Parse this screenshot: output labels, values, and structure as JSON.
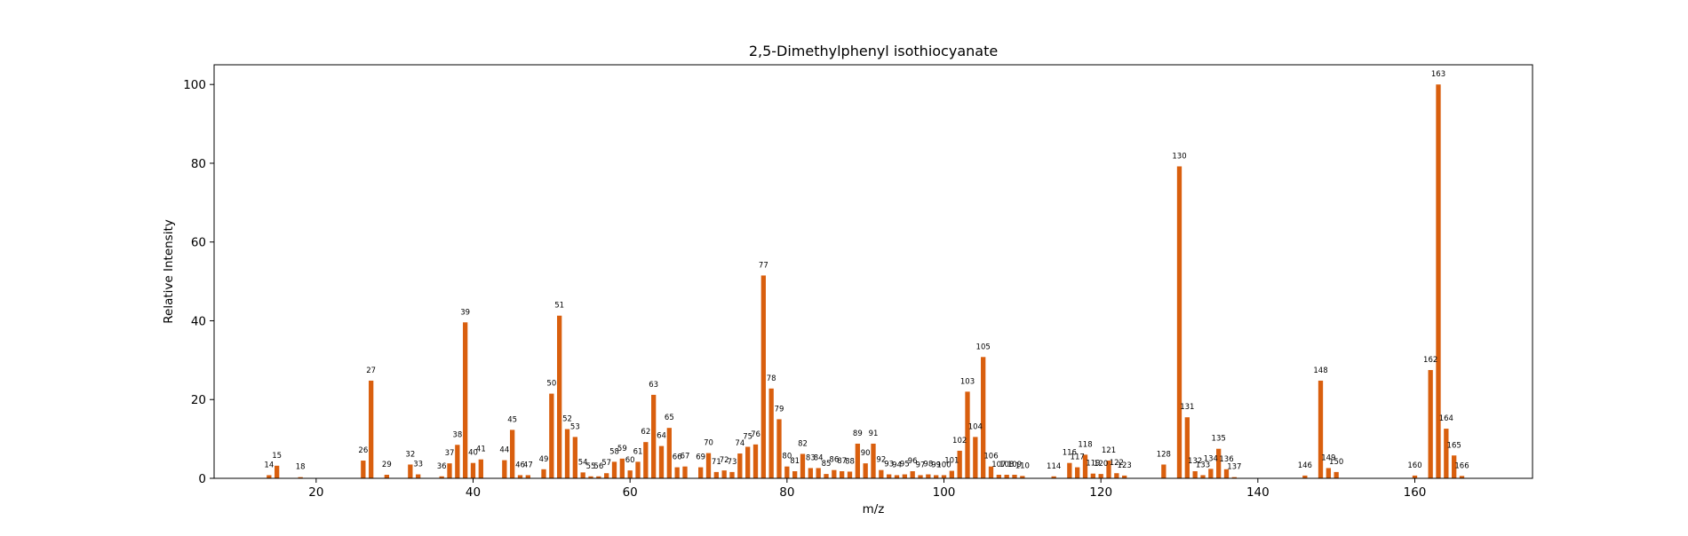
{
  "chart_data": {
    "type": "bar",
    "title": "2,5-Dimethylphenyl isothiocyanate",
    "xlabel": "m/z",
    "ylabel": "Relative Intensity",
    "xlim": [
      7,
      175
    ],
    "ylim": [
      0,
      105
    ],
    "xticks": [
      20,
      40,
      60,
      80,
      100,
      120,
      140,
      160
    ],
    "yticks": [
      0,
      20,
      40,
      60,
      80,
      100
    ],
    "grid": false,
    "bar_color": "#d95f0e",
    "peaks": [
      {
        "mz": 14,
        "intensity": 0.8,
        "label": "14"
      },
      {
        "mz": 15,
        "intensity": 3.2,
        "label": "15"
      },
      {
        "mz": 18,
        "intensity": 0.3,
        "label": "18"
      },
      {
        "mz": 26,
        "intensity": 4.5,
        "label": "26"
      },
      {
        "mz": 27,
        "intensity": 24.8,
        "label": "27"
      },
      {
        "mz": 29,
        "intensity": 0.9,
        "label": "29"
      },
      {
        "mz": 32,
        "intensity": 3.5,
        "label": "32"
      },
      {
        "mz": 33,
        "intensity": 1.0,
        "label": "33"
      },
      {
        "mz": 36,
        "intensity": 0.5,
        "label": "36"
      },
      {
        "mz": 37,
        "intensity": 3.8,
        "label": "37"
      },
      {
        "mz": 38,
        "intensity": 8.5,
        "label": "38"
      },
      {
        "mz": 39,
        "intensity": 39.6,
        "label": "39"
      },
      {
        "mz": 40,
        "intensity": 3.9,
        "label": "40"
      },
      {
        "mz": 41,
        "intensity": 4.8,
        "label": "41"
      },
      {
        "mz": 44,
        "intensity": 4.6,
        "label": "44"
      },
      {
        "mz": 45,
        "intensity": 12.3,
        "label": "45"
      },
      {
        "mz": 46,
        "intensity": 0.8,
        "label": "46"
      },
      {
        "mz": 47,
        "intensity": 0.8,
        "label": "47"
      },
      {
        "mz": 49,
        "intensity": 2.3,
        "label": "49"
      },
      {
        "mz": 50,
        "intensity": 21.5,
        "label": "50"
      },
      {
        "mz": 51,
        "intensity": 41.3,
        "label": "51"
      },
      {
        "mz": 52,
        "intensity": 12.5,
        "label": "52"
      },
      {
        "mz": 53,
        "intensity": 10.5,
        "label": "53"
      },
      {
        "mz": 54,
        "intensity": 1.5,
        "label": "54"
      },
      {
        "mz": 55,
        "intensity": 0.5,
        "label": "55"
      },
      {
        "mz": 56,
        "intensity": 0.5,
        "label": "56"
      },
      {
        "mz": 57,
        "intensity": 1.3,
        "label": "57"
      },
      {
        "mz": 58,
        "intensity": 4.2,
        "label": "58"
      },
      {
        "mz": 59,
        "intensity": 5.0,
        "label": "59"
      },
      {
        "mz": 60,
        "intensity": 2.0,
        "label": "60"
      },
      {
        "mz": 61,
        "intensity": 4.2,
        "label": "61"
      },
      {
        "mz": 62,
        "intensity": 9.2,
        "label": "62"
      },
      {
        "mz": 63,
        "intensity": 21.2,
        "label": "63"
      },
      {
        "mz": 64,
        "intensity": 8.2,
        "label": "64"
      },
      {
        "mz": 65,
        "intensity": 12.8,
        "label": "65"
      },
      {
        "mz": 66,
        "intensity": 2.8,
        "label": "66"
      },
      {
        "mz": 67,
        "intensity": 3.0,
        "label": "67"
      },
      {
        "mz": 69,
        "intensity": 2.8,
        "label": "69"
      },
      {
        "mz": 70,
        "intensity": 6.4,
        "label": "70"
      },
      {
        "mz": 71,
        "intensity": 1.6,
        "label": "71"
      },
      {
        "mz": 72,
        "intensity": 2.0,
        "label": "72"
      },
      {
        "mz": 73,
        "intensity": 1.6,
        "label": "73"
      },
      {
        "mz": 74,
        "intensity": 6.3,
        "label": "74"
      },
      {
        "mz": 75,
        "intensity": 8.0,
        "label": "75"
      },
      {
        "mz": 76,
        "intensity": 8.6,
        "label": "76"
      },
      {
        "mz": 77,
        "intensity": 51.5,
        "label": "77"
      },
      {
        "mz": 78,
        "intensity": 22.8,
        "label": "78"
      },
      {
        "mz": 79,
        "intensity": 15.0,
        "label": "79"
      },
      {
        "mz": 80,
        "intensity": 3.0,
        "label": "80"
      },
      {
        "mz": 81,
        "intensity": 1.8,
        "label": "81"
      },
      {
        "mz": 82,
        "intensity": 6.2,
        "label": "82"
      },
      {
        "mz": 83,
        "intensity": 2.6,
        "label": "83"
      },
      {
        "mz": 84,
        "intensity": 2.6,
        "label": "84"
      },
      {
        "mz": 85,
        "intensity": 1.1,
        "label": "85"
      },
      {
        "mz": 86,
        "intensity": 2.1,
        "label": "86"
      },
      {
        "mz": 87,
        "intensity": 1.8,
        "label": "87"
      },
      {
        "mz": 88,
        "intensity": 1.7,
        "label": "88"
      },
      {
        "mz": 89,
        "intensity": 8.8,
        "label": "89"
      },
      {
        "mz": 90,
        "intensity": 3.8,
        "label": "90"
      },
      {
        "mz": 91,
        "intensity": 8.8,
        "label": "91"
      },
      {
        "mz": 92,
        "intensity": 2.1,
        "label": "92"
      },
      {
        "mz": 93,
        "intensity": 1.0,
        "label": "93"
      },
      {
        "mz": 94,
        "intensity": 0.8,
        "label": "94"
      },
      {
        "mz": 95,
        "intensity": 1.0,
        "label": "95"
      },
      {
        "mz": 96,
        "intensity": 1.8,
        "label": "96"
      },
      {
        "mz": 97,
        "intensity": 0.8,
        "label": "97"
      },
      {
        "mz": 98,
        "intensity": 1.0,
        "label": "98"
      },
      {
        "mz": 99,
        "intensity": 0.8,
        "label": "99"
      },
      {
        "mz": 100,
        "intensity": 0.8,
        "label": "100"
      },
      {
        "mz": 101,
        "intensity": 1.9,
        "label": "101"
      },
      {
        "mz": 102,
        "intensity": 7.0,
        "label": "102"
      },
      {
        "mz": 103,
        "intensity": 22.0,
        "label": "103"
      },
      {
        "mz": 104,
        "intensity": 10.5,
        "label": "104"
      },
      {
        "mz": 105,
        "intensity": 30.8,
        "label": "105"
      },
      {
        "mz": 106,
        "intensity": 3.0,
        "label": "106"
      },
      {
        "mz": 107,
        "intensity": 0.9,
        "label": "107"
      },
      {
        "mz": 108,
        "intensity": 0.9,
        "label": "108"
      },
      {
        "mz": 109,
        "intensity": 0.9,
        "label": "109"
      },
      {
        "mz": 110,
        "intensity": 0.6,
        "label": "110"
      },
      {
        "mz": 114,
        "intensity": 0.5,
        "label": "114"
      },
      {
        "mz": 116,
        "intensity": 3.9,
        "label": "116"
      },
      {
        "mz": 117,
        "intensity": 2.8,
        "label": "117"
      },
      {
        "mz": 118,
        "intensity": 6.0,
        "label": "118"
      },
      {
        "mz": 119,
        "intensity": 1.2,
        "label": "119"
      },
      {
        "mz": 120,
        "intensity": 1.1,
        "label": "120"
      },
      {
        "mz": 121,
        "intensity": 4.5,
        "label": "121"
      },
      {
        "mz": 122,
        "intensity": 1.3,
        "label": "122"
      },
      {
        "mz": 123,
        "intensity": 0.7,
        "label": "123"
      },
      {
        "mz": 128,
        "intensity": 3.5,
        "label": "128"
      },
      {
        "mz": 130,
        "intensity": 79.2,
        "label": "130"
      },
      {
        "mz": 131,
        "intensity": 15.5,
        "label": "131"
      },
      {
        "mz": 132,
        "intensity": 1.8,
        "label": "132"
      },
      {
        "mz": 133,
        "intensity": 0.8,
        "label": "133"
      },
      {
        "mz": 134,
        "intensity": 2.4,
        "label": "134"
      },
      {
        "mz": 135,
        "intensity": 7.5,
        "label": "135"
      },
      {
        "mz": 136,
        "intensity": 2.3,
        "label": "136"
      },
      {
        "mz": 137,
        "intensity": 0.3,
        "label": "137"
      },
      {
        "mz": 146,
        "intensity": 0.7,
        "label": "146"
      },
      {
        "mz": 148,
        "intensity": 24.8,
        "label": "148"
      },
      {
        "mz": 149,
        "intensity": 2.6,
        "label": "149"
      },
      {
        "mz": 150,
        "intensity": 1.6,
        "label": "150"
      },
      {
        "mz": 160,
        "intensity": 0.7,
        "label": "160"
      },
      {
        "mz": 162,
        "intensity": 27.5,
        "label": "162"
      },
      {
        "mz": 163,
        "intensity": 100,
        "label": "163"
      },
      {
        "mz": 164,
        "intensity": 12.6,
        "label": "164"
      },
      {
        "mz": 165,
        "intensity": 5.8,
        "label": "165"
      },
      {
        "mz": 166,
        "intensity": 0.6,
        "label": "166"
      }
    ]
  }
}
